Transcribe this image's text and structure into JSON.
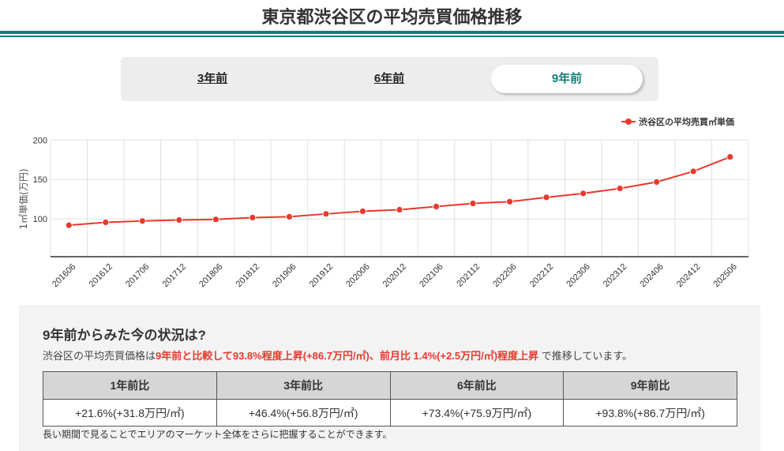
{
  "header": {
    "title": "東京都渋谷区の平均売買価格推移"
  },
  "tabs": [
    {
      "label": "3年前",
      "active": false
    },
    {
      "label": "6年前",
      "active": false
    },
    {
      "label": "9年前",
      "active": true
    }
  ],
  "colors": {
    "accent": "#108078",
    "series": "#e8392c",
    "highlight": "#e8392c"
  },
  "chart_data": {
    "type": "line",
    "title": "",
    "xlabel": "",
    "ylabel": "1㎡単価(万円)",
    "ylim": [
      52,
      200
    ],
    "yticks": [
      100,
      150,
      200
    ],
    "grid": true,
    "legend_position": "top-right",
    "categories": [
      "201606",
      "201612",
      "201706",
      "201712",
      "201806",
      "201812",
      "201906",
      "201912",
      "202006",
      "202012",
      "202106",
      "202112",
      "202206",
      "202212",
      "202306",
      "202312",
      "202406",
      "202412",
      "202506"
    ],
    "series": [
      {
        "name": "渋谷区の平均売買㎡単価",
        "values": [
          91.9,
          95.6,
          97.3,
          98.6,
          99.3,
          101.6,
          102.7,
          106.3,
          109.6,
          111.6,
          115.6,
          119.6,
          121.8,
          127.3,
          132.3,
          138.6,
          146.8,
          160.3,
          178.6
        ]
      }
    ]
  },
  "summary": {
    "title": "9年前からみた今の状況は?",
    "text_prefix": "渋谷区の平均売買価格は",
    "text_highlight1": "9年前と比較して93.8%程度上昇(+86.7万円/㎡)",
    "text_sep": "、",
    "text_highlight2": "前月比 1.4%(+2.5万円/㎡)程度上昇",
    "text_suffix": " で推移しています。",
    "table": {
      "headers": [
        "1年前比",
        "3年前比",
        "6年前比",
        "9年前比"
      ],
      "values": [
        "+21.6%(+31.8万円/㎡)",
        "+46.4%(+56.8万円/㎡)",
        "+73.4%(+75.9万円/㎡)",
        "+93.8%(+86.7万円/㎡)"
      ]
    },
    "note": "長い期間で見ることでエリアのマーケット全体をさらに把握することができます。"
  }
}
